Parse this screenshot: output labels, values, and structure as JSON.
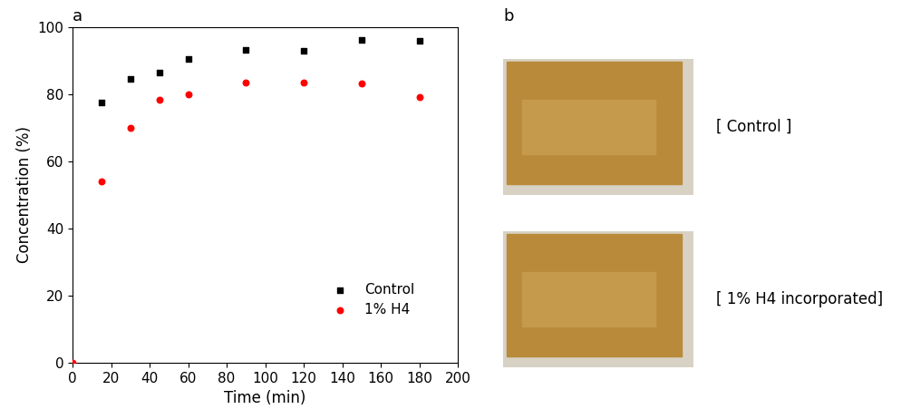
{
  "chart_data": {
    "type": "scatter",
    "x_label": "Time (min)",
    "y_label": "Concentration (%)",
    "xlim": [
      0,
      200
    ],
    "xticks": [
      0,
      20,
      40,
      60,
      80,
      100,
      120,
      140,
      160,
      180,
      200
    ],
    "ylim": [
      0,
      100
    ],
    "yticks": [
      0,
      20,
      40,
      60,
      80,
      100
    ],
    "legend": "lower right",
    "series": [
      {
        "name": "Control",
        "color": "#000000",
        "marker": "square",
        "x": [
          15,
          30,
          45,
          60,
          90,
          120,
          150,
          180
        ],
        "values": [
          77.5,
          84.7,
          86.6,
          90.6,
          93.2,
          93.0,
          96.3,
          96.0
        ]
      },
      {
        "name": "1% H4",
        "color": "#ff0000",
        "marker": "circle",
        "x": [
          0,
          15,
          30,
          45,
          60,
          90,
          120,
          150,
          180
        ],
        "values": [
          0,
          54.0,
          70.0,
          78.3,
          80.1,
          83.5,
          83.5,
          83.3,
          79.2
        ]
      }
    ]
  },
  "panel_labels": [
    "a",
    "b"
  ],
  "photo_captions": [
    "[ Control ]",
    "[ 1% H4 incorporated]"
  ]
}
